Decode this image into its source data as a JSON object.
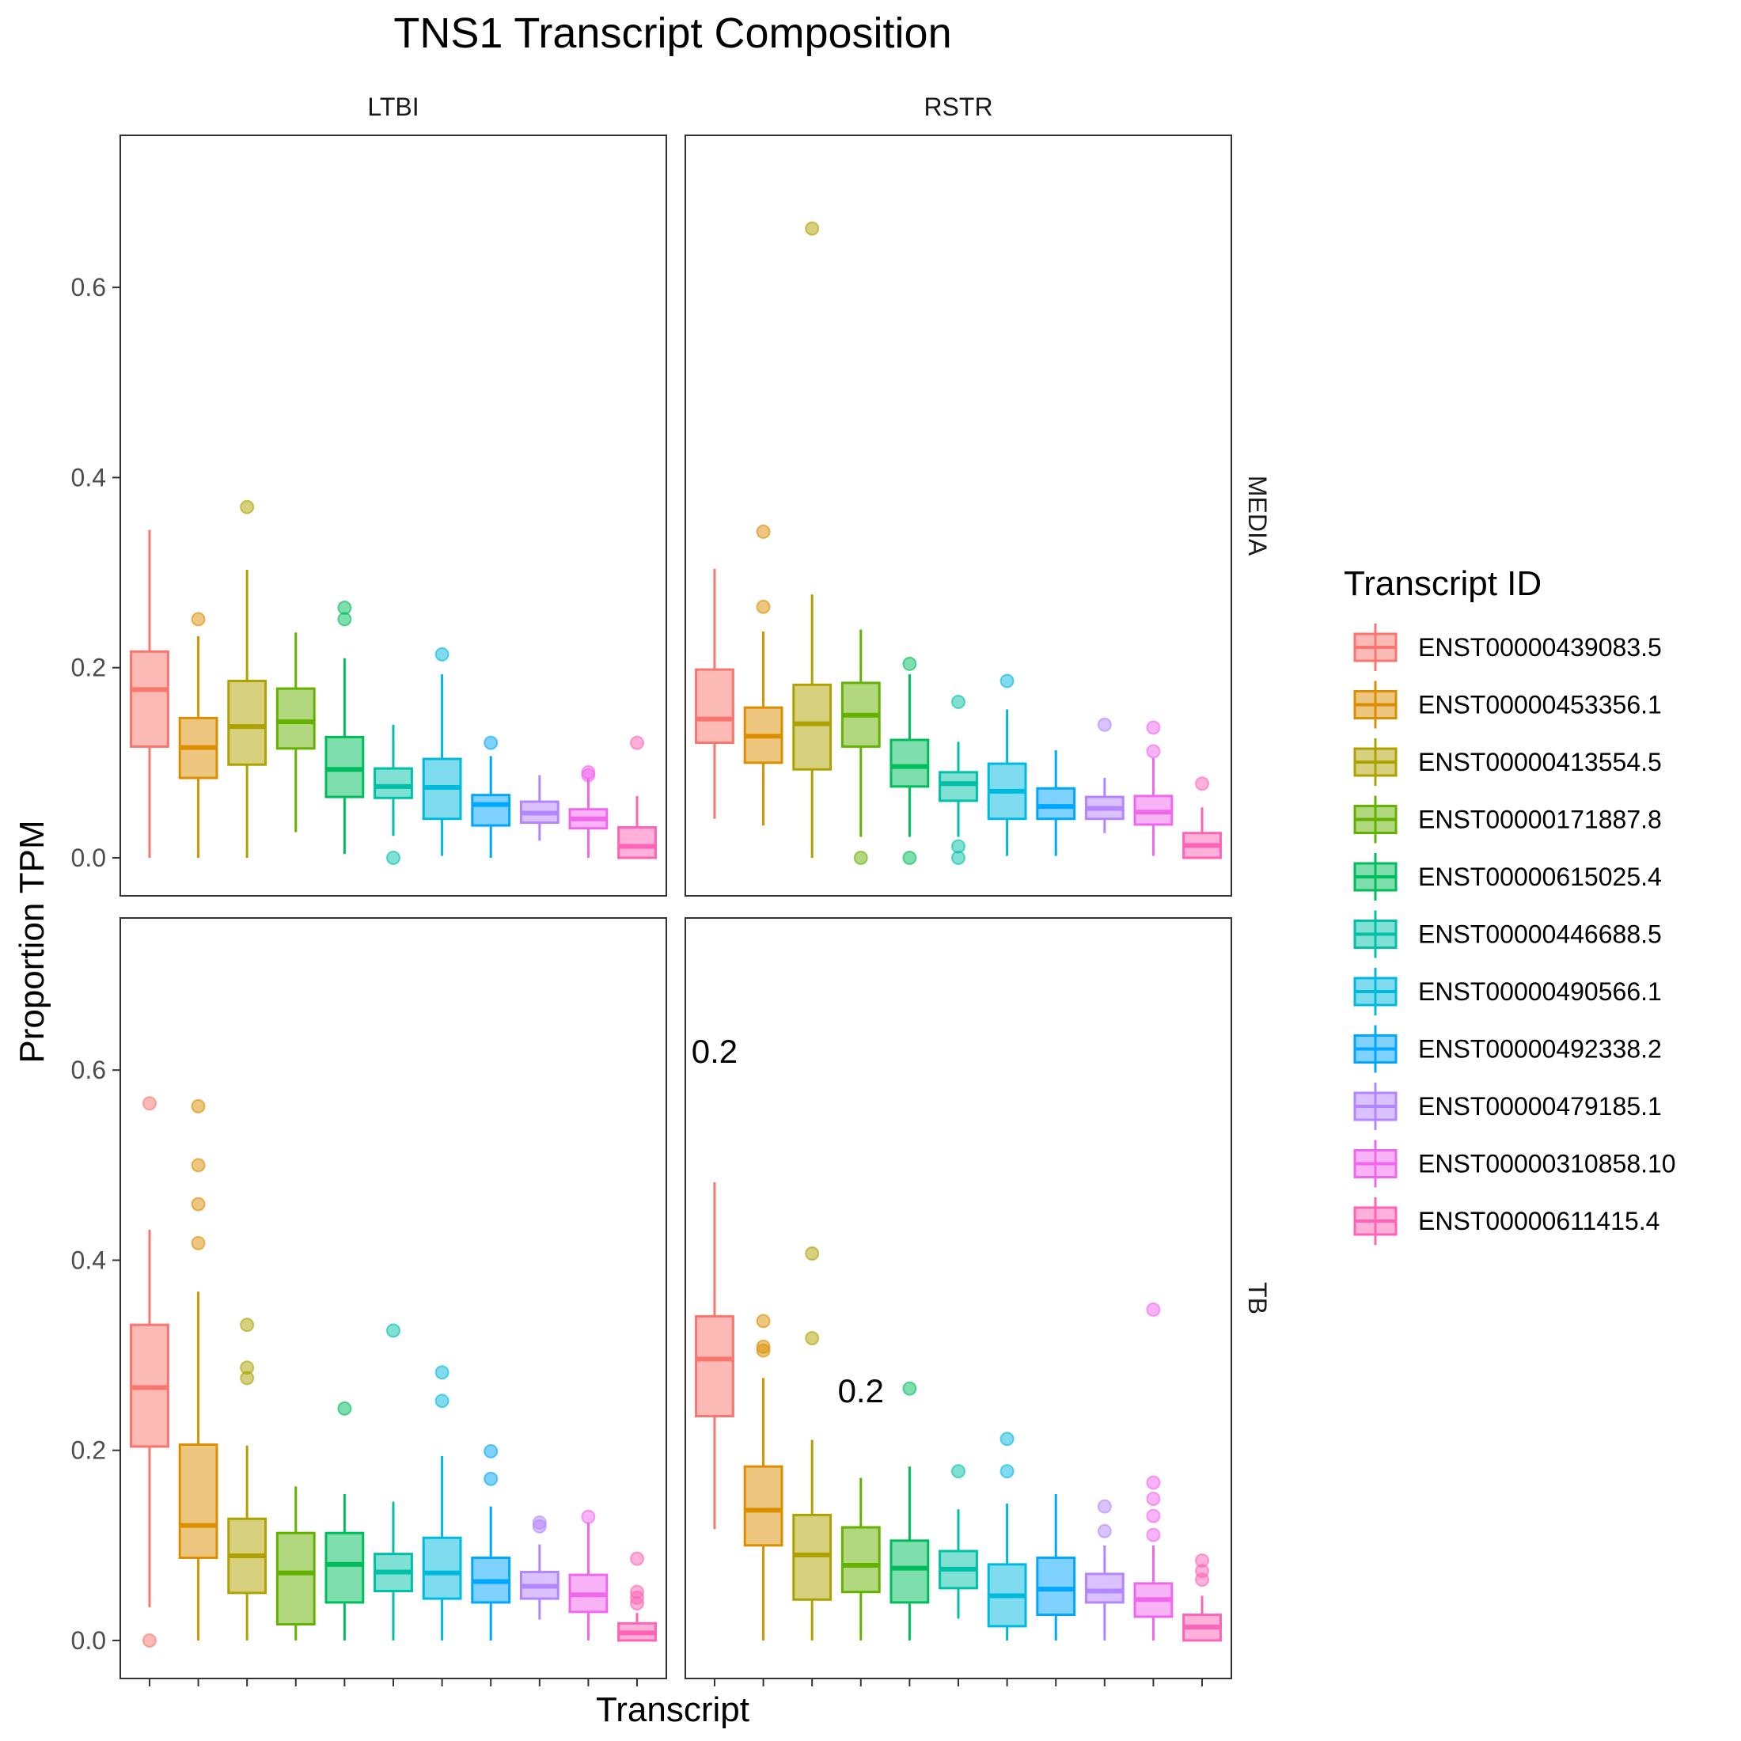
{
  "chart_data": {
    "type": "box",
    "title": "TNS1 Transcript Composition",
    "xlabel": "Transcript",
    "ylabel": "Proportion TPM",
    "ylim": [
      -0.04,
      0.76
    ],
    "yticks": [
      0.0,
      0.2,
      0.4,
      0.6
    ],
    "ytick_labels": [
      "0.0",
      "0.2",
      "0.4",
      "0.6"
    ],
    "grid": false,
    "legend": {
      "title": "Transcript ID",
      "position": "right",
      "entries": [
        {
          "label": "ENST00000439083.5",
          "color": "#F8766D"
        },
        {
          "label": "ENST00000453356.1",
          "color": "#DB8E00"
        },
        {
          "label": "ENST00000413554.5",
          "color": "#AEA200"
        },
        {
          "label": "ENST00000171887.8",
          "color": "#64B200"
        },
        {
          "label": "ENST00000615025.4",
          "color": "#00BD5C"
        },
        {
          "label": "ENST00000446688.5",
          "color": "#00C1A7"
        },
        {
          "label": "ENST00000490566.1",
          "color": "#00BADE"
        },
        {
          "label": "ENST00000492338.2",
          "color": "#00A6FF"
        },
        {
          "label": "ENST00000479185.1",
          "color": "#B385FF"
        },
        {
          "label": "ENST00000310858.10",
          "color": "#EF67EB"
        },
        {
          "label": "ENST00000611415.4",
          "color": "#FF63B6"
        }
      ]
    },
    "col_strips": [
      "LTBI",
      "RSTR"
    ],
    "row_strips": [
      "MEDIA",
      "TB"
    ],
    "panels": [
      {
        "col": "LTBI",
        "row": "MEDIA",
        "boxes": [
          {
            "lo": 0.0,
            "q1": 0.117,
            "med": 0.177,
            "q3": 0.217,
            "hi": 0.345,
            "outliers": []
          },
          {
            "lo": 0.0,
            "q1": 0.084,
            "med": 0.116,
            "q3": 0.147,
            "hi": 0.233,
            "outliers": [
              0.251
            ]
          },
          {
            "lo": 0.0,
            "q1": 0.098,
            "med": 0.138,
            "q3": 0.186,
            "hi": 0.303,
            "outliers": [
              0.369
            ]
          },
          {
            "lo": 0.027,
            "q1": 0.115,
            "med": 0.143,
            "q3": 0.178,
            "hi": 0.237,
            "outliers": []
          },
          {
            "lo": 0.004,
            "q1": 0.064,
            "med": 0.093,
            "q3": 0.127,
            "hi": 0.21,
            "outliers": [
              0.251,
              0.263
            ]
          },
          {
            "lo": 0.023,
            "q1": 0.063,
            "med": 0.075,
            "q3": 0.094,
            "hi": 0.14,
            "outliers": [
              0.0
            ]
          },
          {
            "lo": 0.002,
            "q1": 0.041,
            "med": 0.074,
            "q3": 0.104,
            "hi": 0.193,
            "outliers": [
              0.214
            ]
          },
          {
            "lo": 0.0,
            "q1": 0.034,
            "med": 0.056,
            "q3": 0.066,
            "hi": 0.107,
            "outliers": [
              0.121
            ]
          },
          {
            "lo": 0.018,
            "q1": 0.037,
            "med": 0.047,
            "q3": 0.059,
            "hi": 0.087,
            "outliers": []
          },
          {
            "lo": 0.0,
            "q1": 0.031,
            "med": 0.041,
            "q3": 0.051,
            "hi": 0.084,
            "outliers": [
              0.087,
              0.09
            ]
          },
          {
            "lo": 0.0,
            "q1": 0.0,
            "med": 0.012,
            "q3": 0.032,
            "hi": 0.065,
            "outliers": [
              0.121
            ]
          }
        ]
      },
      {
        "col": "RSTR",
        "row": "MEDIA",
        "boxes": [
          {
            "lo": 0.041,
            "q1": 0.121,
            "med": 0.146,
            "q3": 0.198,
            "hi": 0.304,
            "outliers": []
          },
          {
            "lo": 0.034,
            "q1": 0.1,
            "med": 0.128,
            "q3": 0.158,
            "hi": 0.238,
            "outliers": [
              0.264,
              0.343
            ]
          },
          {
            "lo": 0.0,
            "q1": 0.093,
            "med": 0.141,
            "q3": 0.182,
            "hi": 0.277,
            "outliers": [
              0.662
            ]
          },
          {
            "lo": 0.022,
            "q1": 0.117,
            "med": 0.15,
            "q3": 0.184,
            "hi": 0.24,
            "outliers": [
              0.0
            ]
          },
          {
            "lo": 0.022,
            "q1": 0.075,
            "med": 0.096,
            "q3": 0.124,
            "hi": 0.193,
            "outliers": [
              0.0,
              0.204
            ]
          },
          {
            "lo": 0.022,
            "q1": 0.06,
            "med": 0.078,
            "q3": 0.09,
            "hi": 0.122,
            "outliers": [
              0.0,
              0.012,
              0.164
            ]
          },
          {
            "lo": 0.002,
            "q1": 0.041,
            "med": 0.07,
            "q3": 0.099,
            "hi": 0.156,
            "outliers": [
              0.186
            ]
          },
          {
            "lo": 0.002,
            "q1": 0.041,
            "med": 0.054,
            "q3": 0.073,
            "hi": 0.113,
            "outliers": []
          },
          {
            "lo": 0.026,
            "q1": 0.041,
            "med": 0.052,
            "q3": 0.064,
            "hi": 0.084,
            "outliers": [
              0.14
            ]
          },
          {
            "lo": 0.002,
            "q1": 0.035,
            "med": 0.048,
            "q3": 0.065,
            "hi": 0.105,
            "outliers": [
              0.112,
              0.137
            ]
          },
          {
            "lo": 0.0,
            "q1": 0.0,
            "med": 0.013,
            "q3": 0.026,
            "hi": 0.053,
            "outliers": [
              0.078
            ]
          }
        ]
      },
      {
        "col": "LTBI",
        "row": "TB",
        "boxes": [
          {
            "lo": 0.035,
            "q1": 0.204,
            "med": 0.266,
            "q3": 0.332,
            "hi": 0.432,
            "outliers": [
              0.0,
              0.565
            ]
          },
          {
            "lo": 0.0,
            "q1": 0.087,
            "med": 0.121,
            "q3": 0.206,
            "hi": 0.367,
            "outliers": [
              0.418,
              0.459,
              0.5,
              0.562
            ]
          },
          {
            "lo": 0.0,
            "q1": 0.05,
            "med": 0.089,
            "q3": 0.128,
            "hi": 0.205,
            "outliers": [
              0.276,
              0.287,
              0.332
            ]
          },
          {
            "lo": 0.0,
            "q1": 0.017,
            "med": 0.071,
            "q3": 0.113,
            "hi": 0.162,
            "outliers": []
          },
          {
            "lo": 0.0,
            "q1": 0.04,
            "med": 0.08,
            "q3": 0.113,
            "hi": 0.154,
            "outliers": [
              0.244
            ]
          },
          {
            "lo": 0.0,
            "q1": 0.052,
            "med": 0.072,
            "q3": 0.091,
            "hi": 0.146,
            "outliers": [
              0.326
            ]
          },
          {
            "lo": 0.0,
            "q1": 0.044,
            "med": 0.071,
            "q3": 0.108,
            "hi": 0.194,
            "outliers": [
              0.252,
              0.282
            ]
          },
          {
            "lo": 0.0,
            "q1": 0.04,
            "med": 0.062,
            "q3": 0.087,
            "hi": 0.141,
            "outliers": [
              0.17,
              0.199
            ]
          },
          {
            "lo": 0.022,
            "q1": 0.044,
            "med": 0.057,
            "q3": 0.072,
            "hi": 0.101,
            "outliers": [
              0.12,
              0.124
            ]
          },
          {
            "lo": 0.0,
            "q1": 0.03,
            "med": 0.048,
            "q3": 0.069,
            "hi": 0.124,
            "outliers": [
              0.13
            ]
          },
          {
            "lo": 0.0,
            "q1": 0.0,
            "med": 0.008,
            "q3": 0.018,
            "hi": 0.029,
            "outliers": [
              0.039,
              0.045,
              0.051,
              0.086
            ]
          }
        ]
      },
      {
        "col": "RSTR",
        "row": "TB",
        "boxes": [
          {
            "lo": 0.117,
            "q1": 0.236,
            "med": 0.296,
            "q3": 0.341,
            "hi": 0.482,
            "outliers": []
          },
          {
            "lo": 0.0,
            "q1": 0.1,
            "med": 0.137,
            "q3": 0.183,
            "hi": 0.276,
            "outliers": [
              0.305,
              0.309,
              0.336
            ]
          },
          {
            "lo": 0.0,
            "q1": 0.043,
            "med": 0.09,
            "q3": 0.132,
            "hi": 0.211,
            "outliers": [
              0.318,
              0.407
            ]
          },
          {
            "lo": 0.0,
            "q1": 0.051,
            "med": 0.079,
            "q3": 0.119,
            "hi": 0.171,
            "outliers": []
          },
          {
            "lo": 0.0,
            "q1": 0.04,
            "med": 0.076,
            "q3": 0.105,
            "hi": 0.183,
            "outliers": [
              0.265
            ]
          },
          {
            "lo": 0.023,
            "q1": 0.055,
            "med": 0.075,
            "q3": 0.094,
            "hi": 0.138,
            "outliers": [
              0.178
            ]
          },
          {
            "lo": 0.0,
            "q1": 0.015,
            "med": 0.047,
            "q3": 0.08,
            "hi": 0.144,
            "outliers": [
              0.178,
              0.212
            ]
          },
          {
            "lo": 0.0,
            "q1": 0.027,
            "med": 0.054,
            "q3": 0.087,
            "hi": 0.154,
            "outliers": []
          },
          {
            "lo": 0.0,
            "q1": 0.04,
            "med": 0.052,
            "q3": 0.07,
            "hi": 0.1,
            "outliers": [
              0.115,
              0.141
            ]
          },
          {
            "lo": 0.0,
            "q1": 0.025,
            "med": 0.043,
            "q3": 0.06,
            "hi": 0.1,
            "outliers": [
              0.111,
              0.131,
              0.149,
              0.166,
              0.348
            ]
          },
          {
            "lo": 0.0,
            "q1": 0.0,
            "med": 0.014,
            "q3": 0.027,
            "hi": 0.047,
            "outliers": [
              0.064,
              0.073,
              0.084
            ]
          }
        ]
      }
    ],
    "annotations": [
      {
        "text": "0.2",
        "col": "RSTR",
        "row": "TB",
        "x_cat": 0,
        "y": 0.62
      },
      {
        "text": "0.2",
        "col": "RSTR",
        "row": "TB",
        "x_cat": 3,
        "y": 0.263
      }
    ]
  }
}
